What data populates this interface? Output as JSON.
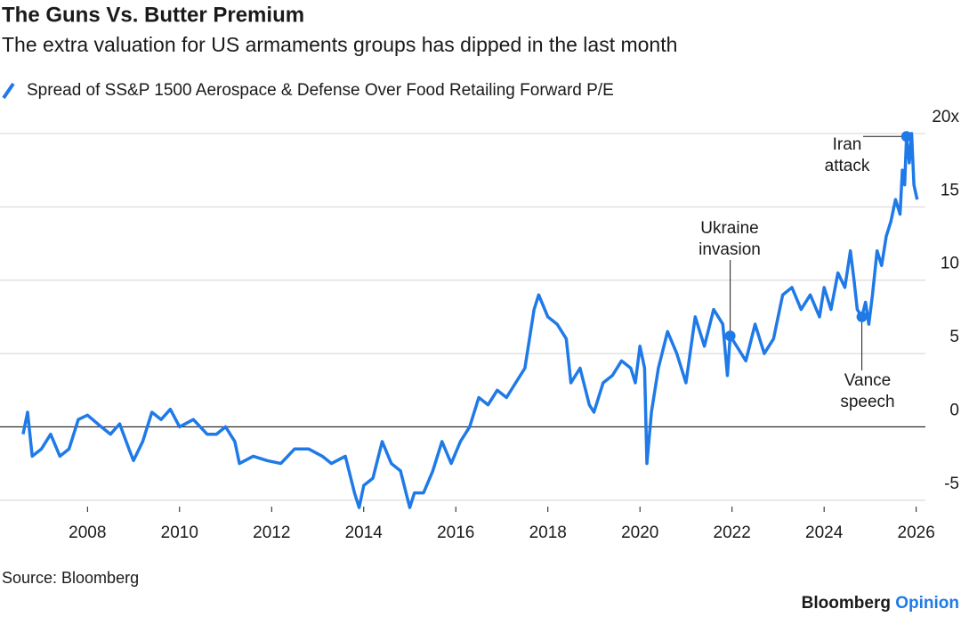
{
  "chart_data": {
    "type": "line",
    "title": "The Guns Vs. Butter Premium",
    "subtitle": "The extra valuation for US armaments groups has dipped in the last month",
    "source": "Source: Bloomberg",
    "brand": [
      "Bloomberg",
      "Opinion"
    ],
    "xlim": [
      2006.1,
      2026.2
    ],
    "ylim": [
      -5.8,
      20.3
    ],
    "xticks": [
      2008,
      2010,
      2012,
      2014,
      2016,
      2018,
      2020,
      2022,
      2024,
      2026
    ],
    "yticks": [
      -5,
      0,
      5,
      10,
      {
        "value": 15,
        "label": "15"
      },
      {
        "value": 20,
        "label": "20x"
      }
    ],
    "grid": true,
    "zero_line": 0,
    "series": [
      {
        "name": "Spread of SS&P 1500 Aerospace & Defense Over Food Retailing Forward P/E",
        "color": "#1f7ae8",
        "x": [
          2006.6,
          2006.7,
          2006.8,
          2007.0,
          2007.2,
          2007.4,
          2007.6,
          2007.8,
          2008.0,
          2008.3,
          2008.5,
          2008.7,
          2008.9,
          2009.0,
          2009.2,
          2009.4,
          2009.6,
          2009.8,
          2010.0,
          2010.3,
          2010.6,
          2010.8,
          2011.0,
          2011.2,
          2011.3,
          2011.6,
          2011.9,
          2012.2,
          2012.5,
          2012.8,
          2013.1,
          2013.3,
          2013.6,
          2013.8,
          2013.9,
          2014.0,
          2014.2,
          2014.4,
          2014.6,
          2014.8,
          2015.0,
          2015.1,
          2015.3,
          2015.5,
          2015.7,
          2015.9,
          2016.1,
          2016.3,
          2016.5,
          2016.7,
          2016.9,
          2017.1,
          2017.3,
          2017.5,
          2017.7,
          2017.8,
          2018.0,
          2018.2,
          2018.4,
          2018.5,
          2018.7,
          2018.9,
          2019.0,
          2019.2,
          2019.4,
          2019.6,
          2019.8,
          2019.9,
          2020.0,
          2020.1,
          2020.15,
          2020.25,
          2020.4,
          2020.6,
          2020.8,
          2021.0,
          2021.2,
          2021.4,
          2021.6,
          2021.8,
          2021.9,
          2021.96,
          2022.1,
          2022.3,
          2022.5,
          2022.7,
          2022.9,
          2023.1,
          2023.3,
          2023.5,
          2023.7,
          2023.9,
          2024.0,
          2024.15,
          2024.3,
          2024.45,
          2024.57,
          2024.65,
          2024.72,
          2024.82,
          2024.9,
          2024.97,
          2025.05,
          2025.15,
          2025.25,
          2025.35,
          2025.45,
          2025.55,
          2025.65,
          2025.7,
          2025.75,
          2025.79,
          2025.85,
          2025.9,
          2025.95,
          2026.02
        ],
        "values": [
          -0.5,
          1.0,
          -2.0,
          -1.5,
          -0.5,
          -2.0,
          -1.5,
          0.5,
          0.8,
          0.0,
          -0.5,
          0.2,
          -1.5,
          -2.3,
          -1.0,
          1.0,
          0.5,
          1.2,
          0.0,
          0.5,
          -0.5,
          -0.5,
          0.0,
          -1.0,
          -2.5,
          -2.0,
          -2.3,
          -2.5,
          -1.5,
          -1.5,
          -2.0,
          -2.5,
          -2.0,
          -4.5,
          -5.5,
          -4.0,
          -3.5,
          -1.0,
          -2.5,
          -3.0,
          -5.5,
          -4.5,
          -4.5,
          -3.0,
          -1.0,
          -2.5,
          -1.0,
          0.0,
          2.0,
          1.5,
          2.5,
          2.0,
          3.0,
          4.0,
          8.0,
          9.0,
          7.5,
          7.0,
          6.0,
          3.0,
          4.0,
          1.5,
          1.0,
          3.0,
          3.5,
          4.5,
          4.0,
          3.0,
          5.5,
          4.0,
          -2.5,
          1.0,
          4.0,
          6.5,
          5.0,
          3.0,
          7.5,
          5.5,
          8.0,
          7.0,
          3.5,
          6.2,
          5.5,
          4.5,
          7.0,
          5.0,
          6.0,
          9.0,
          9.5,
          8.0,
          9.0,
          7.5,
          9.5,
          8.0,
          10.5,
          9.5,
          12.0,
          10.0,
          8.0,
          7.5,
          8.5,
          7.0,
          9.0,
          12.0,
          11.0,
          13.0,
          14.0,
          15.5,
          14.5,
          17.5,
          16.5,
          19.8,
          18.0,
          20.0,
          16.5,
          15.5
        ]
      }
    ],
    "annotations": [
      {
        "lines": [
          "Iran",
          "attack"
        ],
        "x": 2025.79,
        "y": 19.8
      },
      {
        "lines": [
          "Ukraine",
          "invasion"
        ],
        "x": 2021.96,
        "y": 6.2
      },
      {
        "lines": [
          "Vance",
          "speech"
        ],
        "x": 2024.82,
        "y": 7.5
      }
    ]
  }
}
